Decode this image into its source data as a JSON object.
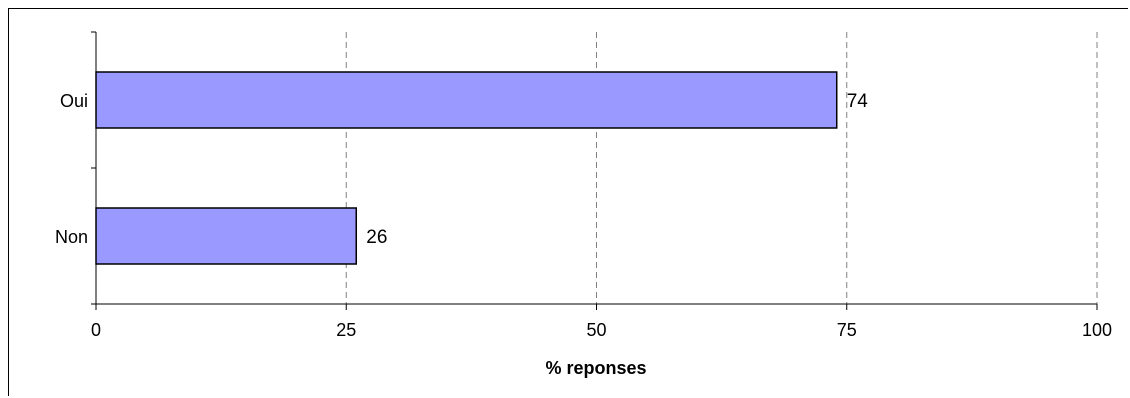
{
  "chart_data": {
    "type": "bar",
    "orientation": "horizontal",
    "categories": [
      "Oui",
      "Non"
    ],
    "values": [
      74,
      26
    ],
    "data_labels": [
      "74",
      "26"
    ],
    "title": "",
    "xlabel": "% reponses",
    "ylabel": "",
    "xlim": [
      0,
      100
    ],
    "x_ticks": [
      "0",
      "25",
      "50",
      "75",
      "100"
    ],
    "grid": "vertical dashed",
    "bar_color": "#9999ff",
    "bar_border_color": "#000000",
    "gridline_color": "#808080"
  }
}
